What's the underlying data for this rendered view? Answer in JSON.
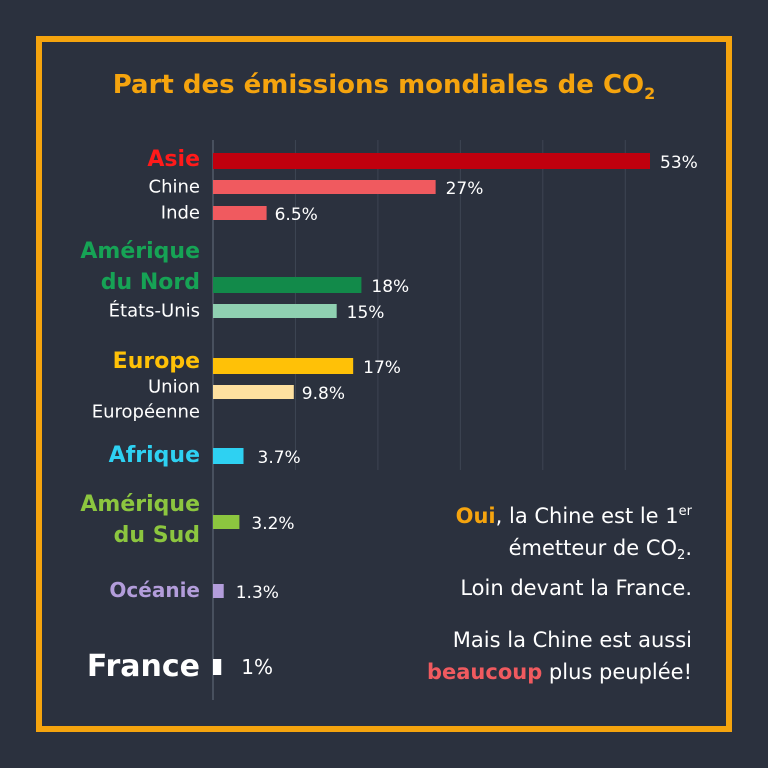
{
  "title": {
    "main": "Part des émissions mondiales de CO",
    "sub": "2"
  },
  "chart_data": {
    "type": "bar",
    "orientation": "horizontal",
    "unit": "%",
    "grid": true,
    "xlim": [
      0,
      53
    ],
    "bars": [
      {
        "name": "Asie",
        "value": 53,
        "label": "53%",
        "group": true,
        "bar_color": "#c0000e",
        "text_color": "#ff1a1a"
      },
      {
        "name": "Chine",
        "value": 27,
        "label": "27%",
        "group": false,
        "bar_color": "#f05a5f",
        "text_color": "#ffffff"
      },
      {
        "name": "Inde",
        "value": 6.5,
        "label": "6.5%",
        "group": false,
        "bar_color": "#f05a5f",
        "text_color": "#ffffff"
      },
      {
        "name": "Amérique du Nord",
        "lines": [
          "Amérique",
          "du Nord"
        ],
        "value": 18,
        "label": "18%",
        "group": true,
        "bar_color": "#128a4a",
        "text_color": "#16a355"
      },
      {
        "name": "États-Unis",
        "value": 15,
        "label": "15%",
        "group": false,
        "bar_color": "#8fd0b1",
        "text_color": "#ffffff"
      },
      {
        "name": "Europe",
        "value": 17,
        "label": "17%",
        "group": true,
        "bar_color": "#ffc107",
        "text_color": "#ffc107"
      },
      {
        "name": "Union Européenne",
        "lines": [
          "Union",
          "Européenne"
        ],
        "value": 9.8,
        "label": "9.8%",
        "group": false,
        "bar_color": "#fde0a0",
        "text_color": "#ffffff"
      },
      {
        "name": "Afrique",
        "value": 3.7,
        "label": "3.7%",
        "group": true,
        "bar_color": "#2ed1f2",
        "text_color": "#2ed1f2"
      },
      {
        "name": "Amérique du Sud",
        "lines": [
          "Amérique",
          "du Sud"
        ],
        "value": 3.2,
        "label": "3.2%",
        "group": true,
        "bar_color": "#8cc63f",
        "text_color": "#8cc63f"
      },
      {
        "name": "Océanie",
        "value": 1.3,
        "label": "1.3%",
        "group": true,
        "bar_color": "#b39ddb",
        "text_color": "#b39ddb"
      },
      {
        "name": "France",
        "value": 1,
        "label": "1%",
        "group": true,
        "big": true,
        "bar_color": "#ffffff",
        "text_color": "#ffffff"
      }
    ]
  },
  "note": {
    "oui": "Oui",
    "line1_rest": ", la Chine est le 1",
    "line1_sup": "er",
    "line2_main": "émetteur de CO",
    "line2_sub": "2",
    "line2_end": ".",
    "line3": "Loin devant la France.",
    "line4": "Mais la Chine est aussi",
    "beaucoup": "beaucoup",
    "line5_rest": " plus peuplée!"
  }
}
